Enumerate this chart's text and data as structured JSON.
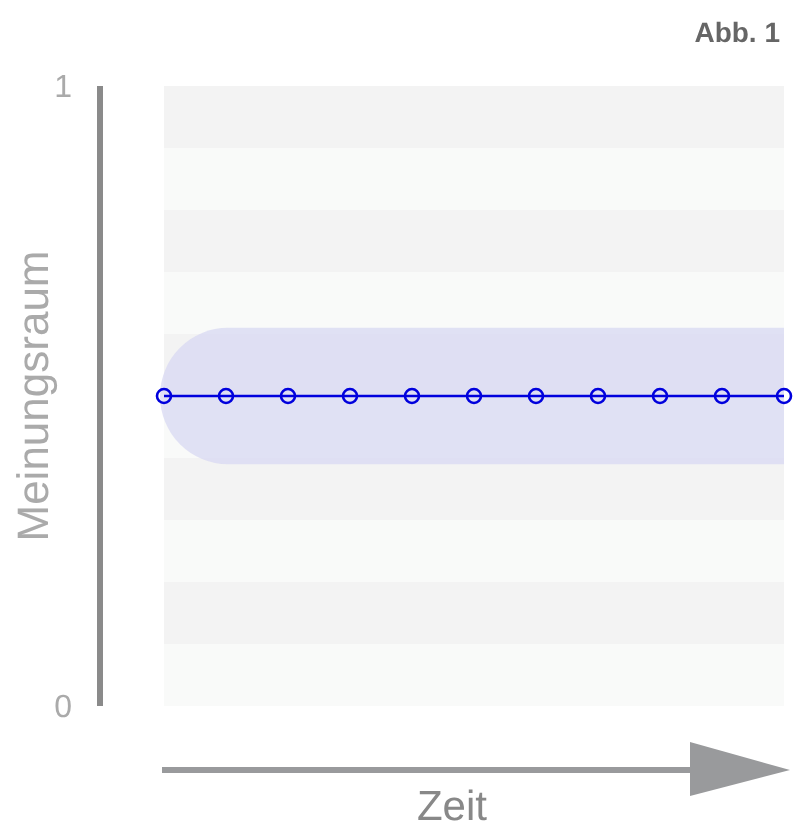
{
  "chart_data": {
    "type": "line",
    "title": "Abb. 1",
    "xlabel": "Zeit",
    "ylabel": "Meinungsraum",
    "categories": [
      null,
      null,
      null,
      null,
      null,
      null,
      null,
      null,
      null,
      null,
      null
    ],
    "series": [
      {
        "color": "#0000dd",
        "values": [
          0.5,
          0.5,
          0.5,
          0.5,
          0.5,
          0.5,
          0.5,
          0.5,
          0.5,
          0.5,
          0.5
        ]
      }
    ],
    "ylim": [
      0,
      1
    ],
    "yticks": [
      0,
      1
    ],
    "tick_labels": "y",
    "marker": "circle",
    "line_style": "solid",
    "bands": [
      {
        "axis": "y",
        "from": 0.39,
        "to": 0.61,
        "color": "#d6d6f2"
      }
    ]
  }
}
